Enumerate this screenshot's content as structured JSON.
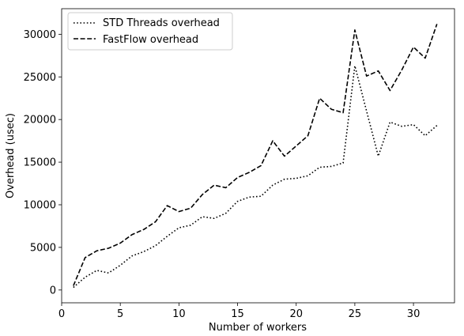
{
  "chart_data": {
    "type": "line",
    "xlabel": "Number of workers",
    "ylabel": "Overhead (usec)",
    "xlim": [
      0,
      33.5
    ],
    "ylim": [
      -1500,
      33000
    ],
    "xticks": [
      0,
      5,
      10,
      15,
      20,
      25,
      30
    ],
    "yticks": [
      0,
      5000,
      10000,
      15000,
      20000,
      25000,
      30000
    ],
    "grid": false,
    "legend": "top-left",
    "x": [
      1,
      2,
      3,
      4,
      5,
      6,
      7,
      8,
      9,
      10,
      11,
      12,
      13,
      14,
      15,
      16,
      17,
      18,
      19,
      20,
      21,
      22,
      23,
      24,
      25,
      26,
      27,
      28,
      29,
      30,
      31,
      32
    ],
    "series": [
      {
        "name": "STD Threads overhead",
        "style": "dotted",
        "color": "#000000",
        "values": [
          300,
          1500,
          2300,
          2000,
          2900,
          4000,
          4500,
          5200,
          6300,
          7300,
          7600,
          8600,
          8400,
          9000,
          10400,
          10900,
          11000,
          12300,
          13000,
          13100,
          13400,
          14400,
          14500,
          14900,
          26300,
          21000,
          15700,
          19700,
          19200,
          19400,
          18100,
          19300
        ]
      },
      {
        "name": "FastFlow overhead",
        "style": "dashed",
        "color": "#000000",
        "values": [
          500,
          3800,
          4600,
          4900,
          5500,
          6500,
          7100,
          8000,
          9900,
          9200,
          9600,
          11200,
          12300,
          12000,
          13200,
          13800,
          14600,
          17500,
          15700,
          16900,
          18100,
          22500,
          21200,
          20800,
          30500,
          25100,
          25700,
          23400,
          25800,
          28500,
          27200,
          31200
        ]
      }
    ]
  }
}
